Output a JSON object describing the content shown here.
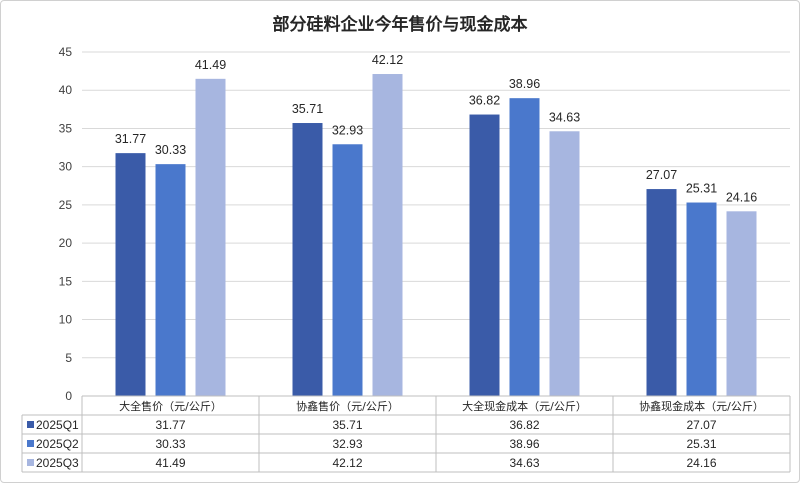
{
  "chart_data": {
    "type": "bar",
    "title": "部分硅料企业今年售价与现金成本",
    "categories": [
      "大全售价（元/公斤）",
      "协鑫售价（元/公斤）",
      "大全现金成本（元/公斤）",
      "协鑫现金成本（元/公斤）"
    ],
    "series": [
      {
        "name": "2025Q1",
        "values": [
          31.77,
          35.71,
          36.82,
          27.07
        ],
        "color": "#3a5ba8"
      },
      {
        "name": "2025Q2",
        "values": [
          30.33,
          32.93,
          38.96,
          25.31
        ],
        "color": "#4a78cc"
      },
      {
        "name": "2025Q3",
        "values": [
          41.49,
          42.12,
          34.63,
          24.16
        ],
        "color": "#a7b6e0"
      }
    ],
    "ylim": [
      0,
      45
    ],
    "yticks": [
      0,
      5,
      10,
      15,
      20,
      25,
      30,
      35,
      40,
      45
    ],
    "grid": true,
    "legend": "data-table-below",
    "xlabel": "",
    "ylabel": ""
  }
}
